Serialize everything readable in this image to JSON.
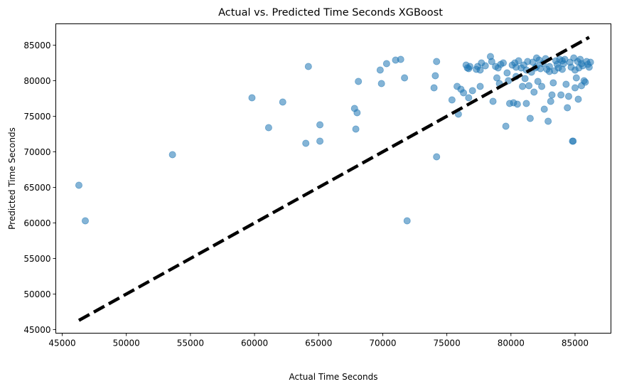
{
  "chart_data": {
    "type": "scatter",
    "title": "Actual vs. Predicted Time Seconds XGBoost",
    "xlabel": "Actual Time Seconds",
    "ylabel": "Predicted Time Seconds",
    "xlim": [
      44500,
      87800
    ],
    "ylim": [
      44500,
      88000
    ],
    "xticks": [
      45000,
      50000,
      55000,
      60000,
      65000,
      70000,
      75000,
      80000,
      85000
    ],
    "yticks": [
      45000,
      50000,
      55000,
      60000,
      65000,
      70000,
      75000,
      80000,
      85000
    ],
    "point_color": "#1f77b4",
    "point_alpha": 0.55,
    "reference_line": {
      "from": [
        46300,
        46300
      ],
      "to": [
        86100,
        86100
      ],
      "color": "#000000",
      "style": "dashed"
    },
    "points": [
      [
        46300,
        65300
      ],
      [
        46800,
        60300
      ],
      [
        53600,
        69600
      ],
      [
        59800,
        77600
      ],
      [
        61100,
        73400
      ],
      [
        62200,
        77000
      ],
      [
        64000,
        71200
      ],
      [
        64200,
        82000
      ],
      [
        65100,
        73800
      ],
      [
        65100,
        71500
      ],
      [
        67800,
        76100
      ],
      [
        67900,
        73200
      ],
      [
        68000,
        75500
      ],
      [
        68100,
        79900
      ],
      [
        69800,
        81500
      ],
      [
        69900,
        79600
      ],
      [
        70300,
        82400
      ],
      [
        71000,
        82900
      ],
      [
        71400,
        83000
      ],
      [
        71700,
        80400
      ],
      [
        71900,
        60300
      ],
      [
        74000,
        79000
      ],
      [
        74100,
        80700
      ],
      [
        74200,
        82700
      ],
      [
        74200,
        69300
      ],
      [
        75400,
        77300
      ],
      [
        75800,
        79200
      ],
      [
        75900,
        75300
      ],
      [
        76100,
        78800
      ],
      [
        76300,
        78300
      ],
      [
        76500,
        82200
      ],
      [
        76600,
        81800
      ],
      [
        76700,
        77600
      ],
      [
        76800,
        82000
      ],
      [
        77000,
        78600
      ],
      [
        77400,
        82000
      ],
      [
        77600,
        79200
      ],
      [
        77600,
        81500
      ],
      [
        77700,
        82500
      ],
      [
        78000,
        82100
      ],
      [
        78400,
        83400
      ],
      [
        78500,
        82700
      ],
      [
        78600,
        77100
      ],
      [
        78800,
        82000
      ],
      [
        78900,
        80400
      ],
      [
        79100,
        79600
      ],
      [
        79200,
        82300
      ],
      [
        79400,
        82500
      ],
      [
        79600,
        73600
      ],
      [
        79700,
        81100
      ],
      [
        79800,
        80000
      ],
      [
        79900,
        76800
      ],
      [
        80100,
        82200
      ],
      [
        80200,
        76900
      ],
      [
        80300,
        82500
      ],
      [
        80400,
        80600
      ],
      [
        80500,
        76700
      ],
      [
        80600,
        82800
      ],
      [
        80800,
        81800
      ],
      [
        80900,
        79200
      ],
      [
        81000,
        82200
      ],
      [
        81100,
        80300
      ],
      [
        81200,
        76800
      ],
      [
        81300,
        82700
      ],
      [
        81400,
        79300
      ],
      [
        81500,
        74700
      ],
      [
        81600,
        81200
      ],
      [
        81700,
        82600
      ],
      [
        81800,
        78400
      ],
      [
        81900,
        81800
      ],
      [
        82000,
        83200
      ],
      [
        82100,
        79900
      ],
      [
        82200,
        82900
      ],
      [
        82300,
        81700
      ],
      [
        82400,
        79200
      ],
      [
        82500,
        82400
      ],
      [
        82600,
        76000
      ],
      [
        82700,
        83100
      ],
      [
        82800,
        81600
      ],
      [
        82900,
        74300
      ],
      [
        83000,
        82000
      ],
      [
        83100,
        77100
      ],
      [
        83200,
        78000
      ],
      [
        83300,
        79700
      ],
      [
        83400,
        81400
      ],
      [
        83500,
        82800
      ],
      [
        83600,
        82300
      ],
      [
        83700,
        81800
      ],
      [
        83800,
        83000
      ],
      [
        83900,
        78000
      ],
      [
        84000,
        81600
      ],
      [
        84100,
        82400
      ],
      [
        84200,
        83000
      ],
      [
        84300,
        79500
      ],
      [
        84400,
        76200
      ],
      [
        84500,
        77800
      ],
      [
        84600,
        82600
      ],
      [
        84700,
        81900
      ],
      [
        84800,
        71500
      ],
      [
        84850,
        71500
      ],
      [
        84900,
        83200
      ],
      [
        85000,
        79000
      ],
      [
        85100,
        80400
      ],
      [
        85200,
        82700
      ],
      [
        85250,
        77400
      ],
      [
        85300,
        81800
      ],
      [
        85400,
        83000
      ],
      [
        85500,
        79300
      ],
      [
        85600,
        82100
      ],
      [
        85700,
        80000
      ],
      [
        85800,
        79800
      ],
      [
        85900,
        82700
      ],
      [
        86000,
        82300
      ],
      [
        86100,
        81900
      ],
      [
        86200,
        82600
      ],
      [
        80400,
        81900
      ],
      [
        81200,
        81500
      ],
      [
        82000,
        82000
      ],
      [
        83000,
        81300
      ],
      [
        84000,
        82800
      ],
      [
        85000,
        81500
      ],
      [
        85500,
        82400
      ],
      [
        79000,
        81800
      ],
      [
        77300,
        81600
      ],
      [
        76700,
        81700
      ]
    ]
  }
}
